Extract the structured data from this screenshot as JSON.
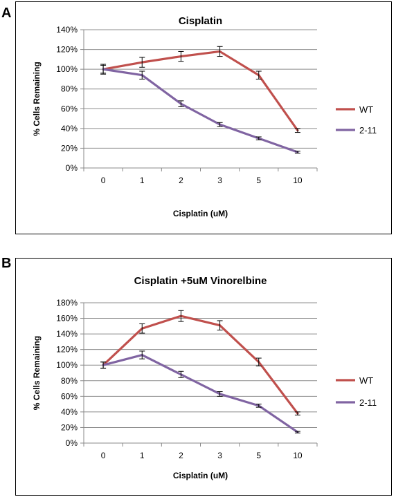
{
  "panels": [
    {
      "letter": "A"
    },
    {
      "letter": "B"
    }
  ],
  "chart_data": [
    {
      "type": "line",
      "title": "Cisplatin",
      "xlabel": "Cisplatin (uM)",
      "ylabel": "% Cells Remaining",
      "categories": [
        "0",
        "1",
        "2",
        "3",
        "5",
        "10"
      ],
      "ylim": [
        0,
        140
      ],
      "yticks": [
        "0%",
        "20%",
        "40%",
        "60%",
        "80%",
        "100%",
        "120%",
        "140%"
      ],
      "legend_position": "right",
      "grid": true,
      "series": [
        {
          "name": "WT",
          "color": "#c0504d",
          "values": [
            100,
            107,
            113,
            118,
            94,
            38
          ],
          "errors": [
            5,
            5,
            5,
            5,
            4,
            2
          ]
        },
        {
          "name": "2-11",
          "color": "#8064a2",
          "values": [
            100,
            94,
            65,
            44,
            30,
            16
          ],
          "errors": [
            4,
            4,
            3,
            2,
            1.5,
            1
          ]
        }
      ]
    },
    {
      "type": "line",
      "title": "Cisplatin +5uM Vinorelbine",
      "xlabel": "Cisplatin (uM)",
      "ylabel": "% Cells Remaining",
      "categories": [
        "0",
        "1",
        "2",
        "3",
        "5",
        "10"
      ],
      "ylim": [
        0,
        180
      ],
      "yticks": [
        "0%",
        "20%",
        "40%",
        "60%",
        "80%",
        "100%",
        "120%",
        "140%",
        "160%",
        "180%"
      ],
      "legend_position": "right",
      "grid": true,
      "series": [
        {
          "name": "WT",
          "color": "#c0504d",
          "values": [
            100,
            147,
            163,
            151,
            104,
            38
          ],
          "errors": [
            4,
            6,
            7,
            6,
            5,
            2
          ]
        },
        {
          "name": "2-11",
          "color": "#8064a2",
          "values": [
            100,
            113,
            88,
            63,
            48,
            14
          ],
          "errors": [
            4,
            5,
            4,
            3,
            2,
            1
          ]
        }
      ]
    }
  ]
}
